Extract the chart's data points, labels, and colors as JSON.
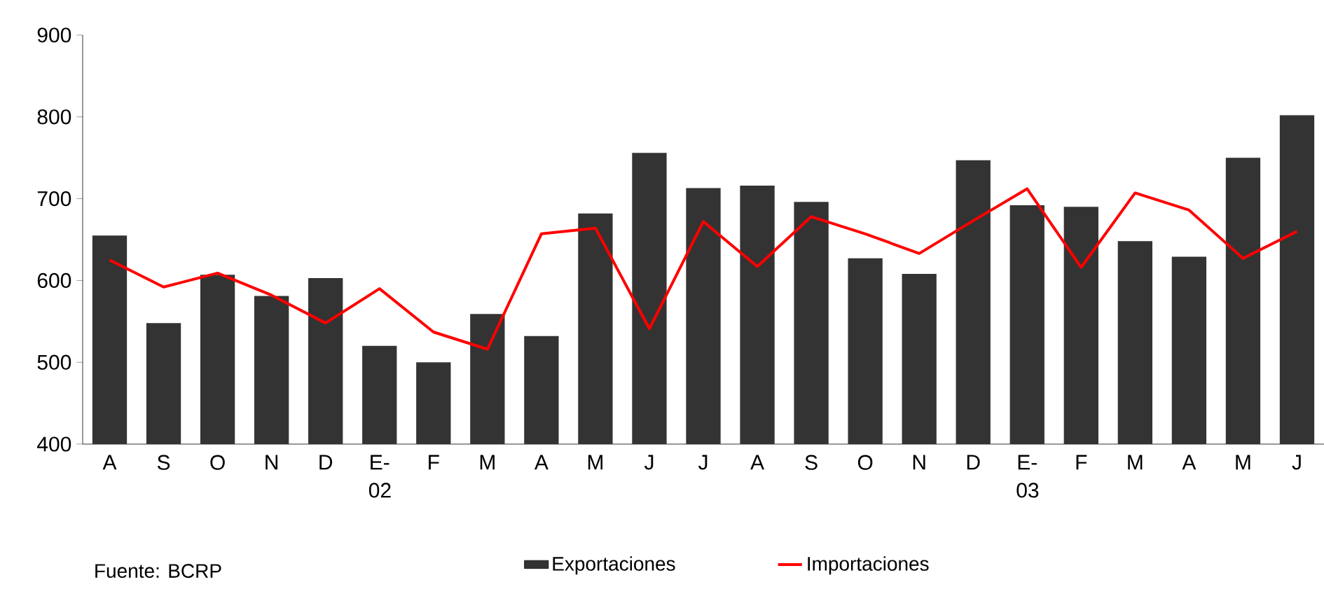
{
  "chart_data": {
    "type": "bar",
    "categories": [
      "A",
      "S",
      "O",
      "N",
      "D",
      "E-02",
      "F",
      "M",
      "A",
      "M",
      "J",
      "J",
      "A",
      "S",
      "O",
      "N",
      "D",
      "E-03",
      "F",
      "M",
      "A",
      "M",
      "J"
    ],
    "series": [
      {
        "name": "Exportaciones",
        "color": "#333333",
        "values": [
          655,
          548,
          607,
          581,
          603,
          520,
          500,
          559,
          532,
          682,
          756,
          713,
          716,
          696,
          627,
          608,
          747,
          692,
          690,
          648,
          629,
          750,
          802
        ]
      },
      {
        "name": "Importaciones",
        "type": "line",
        "color": "#ff0000",
        "values": [
          625,
          592,
          609,
          582,
          548,
          590,
          537,
          516,
          657,
          664,
          541,
          672,
          617,
          678,
          657,
          633,
          673,
          712,
          616,
          707,
          686,
          627,
          660
        ]
      }
    ],
    "ylim": [
      400,
      900
    ],
    "yticks": [
      400,
      500,
      600,
      700,
      800,
      900
    ],
    "legend": "bottom",
    "grid": false,
    "marker": "none",
    "line_style": "solid",
    "annotations": [
      "Fuente: BCRP"
    ]
  }
}
